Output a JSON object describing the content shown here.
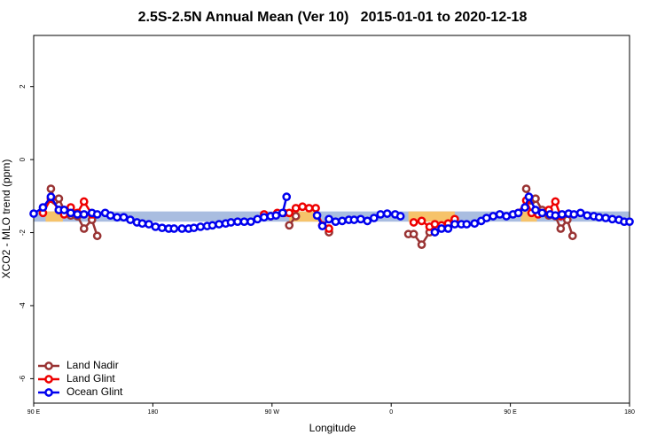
{
  "chart_data": {
    "type": "line",
    "title": "2.5S-2.5N Annual Mean (Ver 10)   2015-01-01 to 2020-12-18",
    "x_label": "Longitude",
    "y_label": "XCO2 - MLO trend (ppm)",
    "xlim": [
      90,
      540
    ],
    "xticks": [
      {
        "value": 90,
        "label": "90 E"
      },
      180,
      {
        "value": 270,
        "label": "90 W"
      },
      {
        "value": 360,
        "label": "0"
      },
      {
        "value": 450,
        "label": "90 E"
      },
      {
        "value": 540,
        "label": "180"
      }
    ],
    "ylim": [
      -6.67,
      3.4
    ],
    "yticks": [
      -6,
      -4,
      -2,
      0,
      2
    ],
    "legend": "bottom left",
    "band": {
      "y": [
        -1.7,
        -1.42
      ],
      "color": "#a9bde0"
    },
    "shaded_regions": {
      "color": "#f6c36a",
      "x": [
        [
          99,
          112
        ],
        [
          283,
          305
        ],
        [
          373,
          408
        ],
        [
          458,
          470
        ]
      ]
    },
    "series": [
      {
        "name": "Land Nadir",
        "color": "#993333",
        "x": [
          103,
          106,
          109,
          113,
          118,
          123,
          128,
          134,
          138,
          null,
          283,
          288,
          null,
          313,
          null,
          373,
          377,
          383,
          389,
          null,
          462,
          466,
          469,
          474,
          479,
          484,
          488,
          493,
          497
        ],
        "values": [
          -0.8,
          -1.12,
          -1.07,
          -1.38,
          -1.53,
          -1.55,
          -1.89,
          -1.65,
          -2.09,
          null,
          -1.8,
          -1.55,
          null,
          -1.99,
          null,
          -2.04,
          -2.04,
          -2.33,
          -1.99,
          null,
          -0.8,
          -1.12,
          -1.07,
          -1.38,
          -1.53,
          -1.55,
          -1.89,
          -1.65,
          -2.09
        ]
      },
      {
        "name": "Land Glint",
        "color": "#ee0000",
        "x": [
          97,
          103,
          109,
          113,
          118,
          123,
          128,
          134,
          null,
          264,
          269,
          274,
          279,
          283,
          288,
          293,
          298,
          303,
          308,
          313,
          null,
          377,
          383,
          389,
          393,
          398,
          403,
          408,
          null,
          456,
          462,
          466,
          471,
          474,
          479,
          484,
          488
        ],
        "values": [
          -1.46,
          -1.07,
          -1.38,
          -1.5,
          -1.31,
          -1.46,
          -1.15,
          -1.5,
          null,
          -1.5,
          -1.55,
          -1.46,
          -1.46,
          -1.46,
          -1.33,
          -1.29,
          -1.33,
          -1.33,
          -1.8,
          -1.89,
          null,
          -1.72,
          -1.68,
          -1.84,
          -1.77,
          -1.8,
          -1.75,
          -1.63,
          null,
          -1.46,
          -1.12,
          -1.46,
          -1.5,
          -1.46,
          -1.38,
          -1.15,
          -1.55
        ]
      },
      {
        "name": "Ocean Glint",
        "color": "#0000ee",
        "x": [
          90,
          97,
          103,
          109,
          113,
          118,
          123,
          128,
          134,
          138,
          144,
          148,
          153,
          158,
          163,
          168,
          172,
          177,
          182,
          187,
          192,
          196,
          202,
          207,
          211,
          216,
          221,
          225,
          230,
          235,
          239,
          244,
          249,
          254,
          259,
          264,
          269,
          273,
          278,
          281,
          null,
          304,
          308,
          313,
          318,
          323,
          328,
          332,
          337,
          342,
          347,
          352,
          357,
          363,
          367,
          null,
          393,
          398,
          403,
          408,
          413,
          417,
          423,
          428,
          432,
          437,
          442,
          447,
          452,
          456,
          461,
          464,
          469,
          474,
          480,
          484,
          489,
          494,
          498,
          503,
          508,
          513,
          517,
          522,
          527,
          532,
          536,
          540
        ],
        "values": [
          -1.48,
          -1.31,
          -1.02,
          -1.38,
          -1.38,
          -1.46,
          -1.5,
          -1.5,
          -1.46,
          -1.5,
          -1.46,
          -1.53,
          -1.58,
          -1.58,
          -1.65,
          -1.72,
          -1.75,
          -1.77,
          -1.84,
          -1.87,
          -1.89,
          -1.89,
          -1.89,
          -1.89,
          -1.87,
          -1.84,
          -1.82,
          -1.8,
          -1.77,
          -1.75,
          -1.72,
          -1.7,
          -1.7,
          -1.7,
          -1.63,
          -1.58,
          -1.55,
          -1.53,
          -1.46,
          -1.02,
          null,
          -1.53,
          -1.82,
          -1.63,
          -1.7,
          -1.68,
          -1.65,
          -1.65,
          -1.63,
          -1.68,
          -1.6,
          -1.5,
          -1.48,
          -1.5,
          -1.55,
          null,
          -1.99,
          -1.89,
          -1.89,
          -1.77,
          -1.77,
          -1.77,
          -1.75,
          -1.68,
          -1.6,
          -1.55,
          -1.5,
          -1.55,
          -1.5,
          -1.46,
          -1.31,
          -1.02,
          -1.38,
          -1.46,
          -1.5,
          -1.53,
          -1.5,
          -1.48,
          -1.5,
          -1.46,
          -1.53,
          -1.55,
          -1.58,
          -1.6,
          -1.63,
          -1.65,
          -1.7,
          -1.7
        ]
      }
    ]
  }
}
